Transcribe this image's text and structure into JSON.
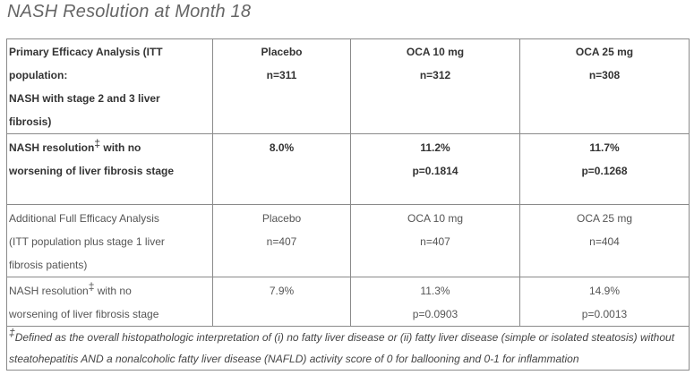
{
  "title": "NASH Resolution at Month 18",
  "table": {
    "primary": {
      "label_lines": [
        "Primary Efficacy Analysis (ITT",
        "population:",
        "NASH with stage 2 and 3 liver",
        "fibrosis)"
      ],
      "placebo": "Placebo",
      "placebo_n": "n=311",
      "oca10": "OCA 10 mg",
      "oca10_n": "n=312",
      "oca25": "OCA 25 mg",
      "oca25_n": "n=308"
    },
    "primary_result": {
      "label_a": "NASH resolution",
      "dagger": "‡",
      "label_b": " with no",
      "label_line2": "worsening of liver fibrosis stage",
      "placebo": "8.0%",
      "oca10": "11.2%",
      "oca10_p": "p=0.1814",
      "oca25": "11.7%",
      "oca25_p": "p=0.1268"
    },
    "additional": {
      "label_lines": [
        "Additional Full Efficacy Analysis",
        "(ITT population plus stage 1 liver",
        "fibrosis patients)"
      ],
      "placebo": "Placebo",
      "placebo_n": "n=407",
      "oca10": "OCA 10 mg",
      "oca10_n": "n=407",
      "oca25": "OCA 25 mg",
      "oca25_n": "n=404"
    },
    "additional_result": {
      "label_a": "NASH resolution",
      "dagger": "‡",
      "label_b": " with no",
      "label_line2": "worsening of liver fibrosis stage",
      "placebo": "7.9%",
      "oca10": "11.3%",
      "oca10_p": "p=0.0903",
      "oca25": "14.9%",
      "oca25_p": "p=0.0013"
    },
    "footnote": {
      "dagger": "‡",
      "line1": "Defined as the overall histopathologic interpretation of (i) no fatty liver disease or (ii) fatty liver disease (simple or isolated steatosis) without",
      "line2": "steatohepatitis AND a nonalcoholic fatty liver disease (NAFLD) activity score of 0 for ballooning and 0-1 for inflammation"
    }
  }
}
